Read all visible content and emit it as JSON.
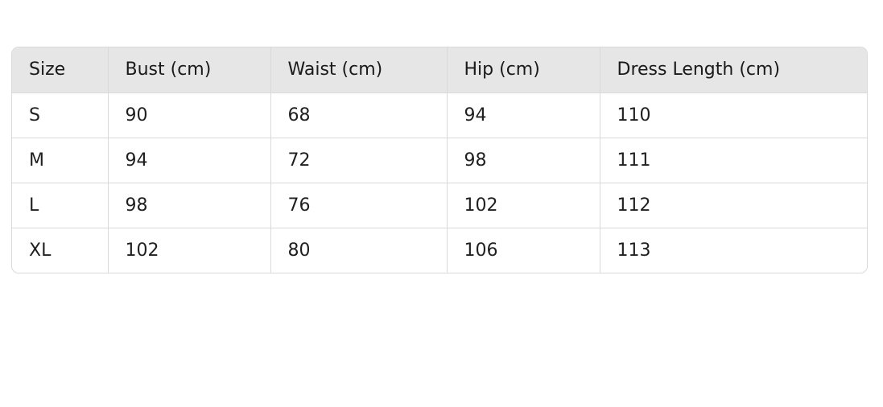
{
  "size_table": {
    "headers": [
      "Size",
      "Bust (cm)",
      "Waist (cm)",
      "Hip (cm)",
      "Dress Length (cm)"
    ],
    "rows": [
      [
        "S",
        "90",
        "68",
        "94",
        "110"
      ],
      [
        "M",
        "94",
        "72",
        "98",
        "111"
      ],
      [
        "L",
        "98",
        "76",
        "102",
        "112"
      ],
      [
        "XL",
        "102",
        "80",
        "106",
        "113"
      ]
    ]
  }
}
